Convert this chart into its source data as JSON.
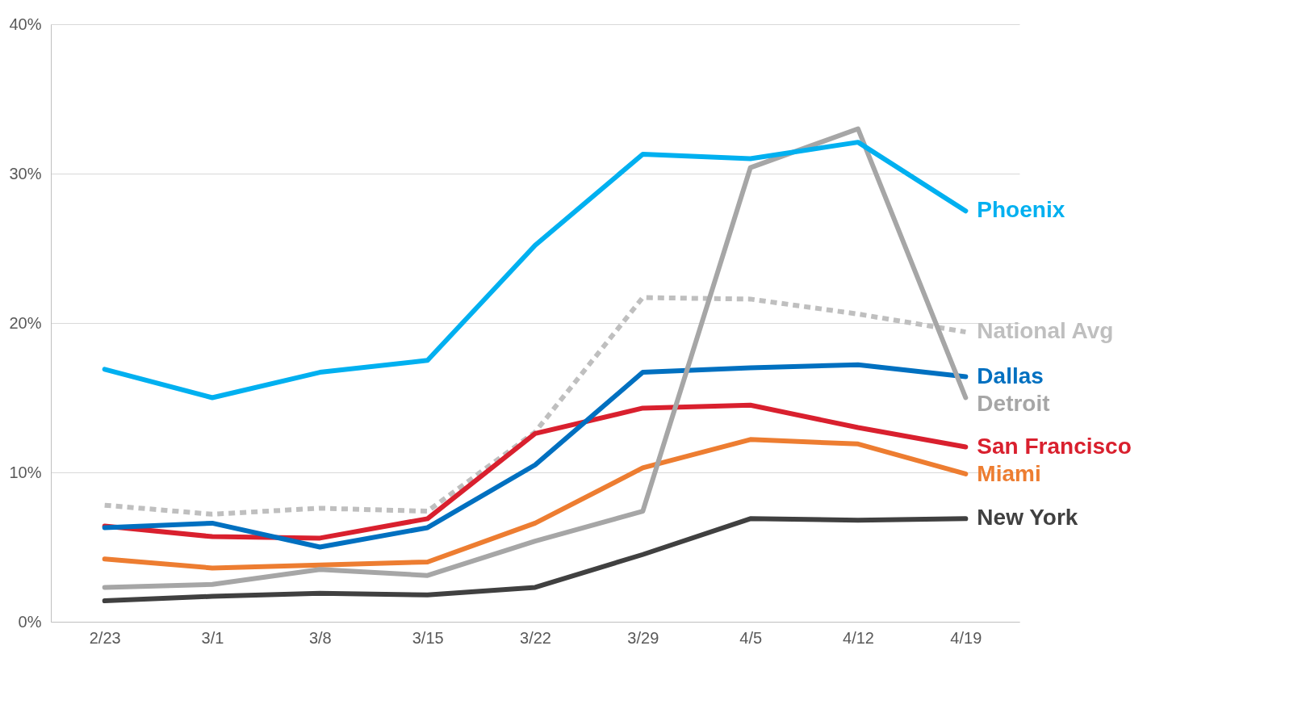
{
  "chart_data": {
    "type": "line",
    "categories": [
      "2/23",
      "3/1",
      "3/8",
      "3/15",
      "3/22",
      "3/29",
      "4/5",
      "4/12",
      "4/19"
    ],
    "ylim": [
      0,
      40
    ],
    "yticks": [
      {
        "value": 0,
        "label": "0%"
      },
      {
        "value": 10,
        "label": "10%"
      },
      {
        "value": 20,
        "label": "20%"
      },
      {
        "value": 30,
        "label": "30%"
      },
      {
        "value": 40,
        "label": "40%"
      }
    ],
    "grid": "y",
    "legend": false,
    "marker": "none",
    "series": [
      {
        "name": "National Avg",
        "color": "#bfbfbf",
        "line_style": "dashed",
        "values": [
          7.8,
          7.2,
          7.6,
          7.4,
          12.7,
          21.7,
          21.6,
          20.6,
          19.4
        ]
      },
      {
        "name": "New York",
        "color": "#404040",
        "values": [
          1.4,
          1.7,
          1.9,
          1.8,
          2.3,
          4.5,
          6.9,
          6.8,
          6.9
        ]
      },
      {
        "name": "Miami",
        "color": "#ed7d31",
        "values": [
          4.2,
          3.6,
          3.8,
          4.0,
          6.6,
          10.3,
          12.2,
          11.9,
          9.9
        ]
      },
      {
        "name": "San Francisco",
        "color": "#d9202e",
        "values": [
          6.4,
          5.7,
          5.6,
          6.9,
          12.6,
          14.3,
          14.5,
          13.0,
          11.7
        ]
      },
      {
        "name": "Dallas",
        "color": "#0070c0",
        "values": [
          6.3,
          6.6,
          5.0,
          6.3,
          10.5,
          16.7,
          17.0,
          17.2,
          16.4
        ]
      },
      {
        "name": "Detroit",
        "color": "#a6a6a6",
        "values": [
          2.3,
          2.5,
          3.5,
          3.1,
          5.4,
          7.4,
          30.4,
          33.0,
          15.0
        ]
      },
      {
        "name": "Phoenix",
        "color": "#00b0f0",
        "values": [
          16.9,
          15.0,
          16.7,
          17.5,
          25.2,
          31.3,
          31.0,
          32.1,
          27.5
        ]
      }
    ]
  }
}
